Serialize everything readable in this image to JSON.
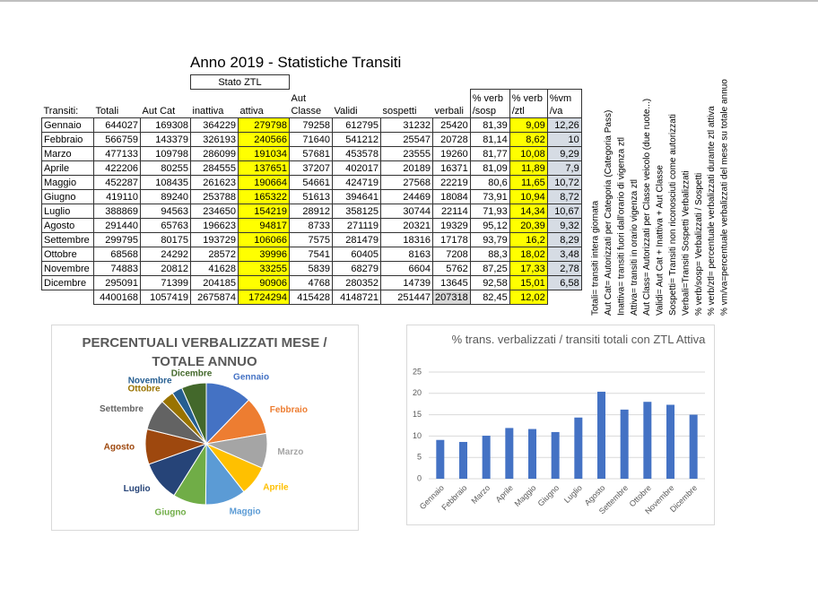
{
  "title": "Anno 2019 - Statistiche Transiti",
  "table": {
    "group_header": "Stato ZTL",
    "headers": [
      [
        "Transiti:"
      ],
      [
        "Totali"
      ],
      [
        "Aut Cat"
      ],
      [
        "inattiva"
      ],
      [
        "attiva"
      ],
      [
        "Aut",
        "Classe"
      ],
      [
        "Validi"
      ],
      [
        "sospetti"
      ],
      [
        "verbali"
      ],
      [
        "% verb",
        "/sosp"
      ],
      [
        "% verb",
        "/ztl"
      ],
      [
        "%vm",
        "/va"
      ]
    ],
    "rows": [
      [
        "Gennaio",
        "644027",
        "169308",
        "364229",
        "279798",
        "79258",
        "612795",
        "31232",
        "25420",
        "81,39",
        "9,09",
        "12,26"
      ],
      [
        "Febbraio",
        "566759",
        "143379",
        "326193",
        "240566",
        "71640",
        "541212",
        "25547",
        "20728",
        "81,14",
        "8,62",
        "10"
      ],
      [
        "Marzo",
        "477133",
        "109798",
        "286099",
        "191034",
        "57681",
        "453578",
        "23555",
        "19260",
        "81,77",
        "10,08",
        "9,29"
      ],
      [
        "Aprile",
        "422206",
        "80255",
        "284555",
        "137651",
        "37207",
        "402017",
        "20189",
        "16371",
        "81,09",
        "11,89",
        "7,9"
      ],
      [
        "Maggio",
        "452287",
        "108435",
        "261623",
        "190664",
        "54661",
        "424719",
        "27568",
        "22219",
        "80,6",
        "11,65",
        "10,72"
      ],
      [
        "Giugno",
        "419110",
        "89240",
        "253788",
        "165322",
        "51613",
        "394641",
        "24469",
        "18084",
        "73,91",
        "10,94",
        "8,72"
      ],
      [
        "Luglio",
        "388869",
        "94563",
        "234650",
        "154219",
        "28912",
        "358125",
        "30744",
        "22114",
        "71,93",
        "14,34",
        "10,67"
      ],
      [
        "Agosto",
        "291440",
        "65763",
        "196623",
        "94817",
        "8733",
        "271119",
        "20321",
        "19329",
        "95,12",
        "20,39",
        "9,32"
      ],
      [
        "Settembre",
        "299795",
        "80175",
        "193729",
        "106066",
        "7575",
        "281479",
        "18316",
        "17178",
        "93,79",
        "16,2",
        "8,29"
      ],
      [
        "Ottobre",
        "68568",
        "24292",
        "28572",
        "39996",
        "7541",
        "60405",
        "8163",
        "7208",
        "88,3",
        "18,02",
        "3,48"
      ],
      [
        "Novembre",
        "74883",
        "20812",
        "41628",
        "33255",
        "5839",
        "68279",
        "6604",
        "5762",
        "87,25",
        "17,33",
        "2,78"
      ],
      [
        "Dicembre",
        "295091",
        "71399",
        "204185",
        "90906",
        "4768",
        "280352",
        "14739",
        "13645",
        "92,58",
        "15,01",
        "6,58"
      ]
    ],
    "totals": [
      "4400168",
      "1057419",
      "2675874",
      "1724294",
      "415428",
      "4148721",
      "251447",
      "207318",
      "82,45",
      "12,02"
    ]
  },
  "legend_notes": [
    "Totali= transiti intera giornata",
    "Aut Cat= Autorizzati per Categoria (Categoria Pass)",
    "Inattiva= transiti fuori dall'orario di vigenza ztl",
    "Attiva= transiti in orario vigenza ztl",
    "Aut Class= Autorizzati per Classe veicolo (due ruote...)",
    "Validi= Aut Cat + Inattiva + Aut Classe",
    "Sospetti= Transiti non riconosciuti come autorizzati",
    "Verbali=Transiti Sospetti Verbalizzati",
    "% verb/sosp= Verbalizzati / Sospetti",
    "% verb/ztl= percentuale verbalizzati durante ztl attiva",
    "% vm/va=percentuale verbalizzati del mese su totale annuo"
  ],
  "chart_data": [
    {
      "type": "pie",
      "title": "PERCENTUALI VERBALIZZATI MESE / TOTALE ANNUO",
      "categories": [
        "Gennaio",
        "Febbraio",
        "Marzo",
        "Aprile",
        "Maggio",
        "Giugno",
        "Luglio",
        "Agosto",
        "Settembre",
        "Ottobre",
        "Novembre",
        "Dicembre"
      ],
      "values": [
        12.26,
        10,
        9.29,
        7.9,
        10.72,
        8.72,
        10.67,
        9.32,
        8.29,
        3.48,
        2.78,
        6.58
      ],
      "colors": [
        "#4472c4",
        "#ed7d31",
        "#a5a5a5",
        "#ffc000",
        "#5b9bd5",
        "#70ad47",
        "#264478",
        "#9e480e",
        "#636363",
        "#997300",
        "#255e91",
        "#43682b"
      ]
    },
    {
      "type": "bar",
      "title": "% trans. verbalizzati / transiti totali con ZTL Attiva",
      "categories": [
        "Gennaio",
        "Febbraio",
        "Marzo",
        "Aprile",
        "Maggio",
        "Giugno",
        "Luglio",
        "Agosto",
        "Settembre",
        "Ottobre",
        "Novembre",
        "Dicembre"
      ],
      "values": [
        9.09,
        8.62,
        10.08,
        11.89,
        11.65,
        10.94,
        14.34,
        20.39,
        16.2,
        18.02,
        17.33,
        15.01
      ],
      "color": "#4472c4",
      "ylim": [
        0,
        25
      ],
      "yticks": [
        0,
        5,
        10,
        15,
        20,
        25
      ],
      "grid": true
    }
  ]
}
